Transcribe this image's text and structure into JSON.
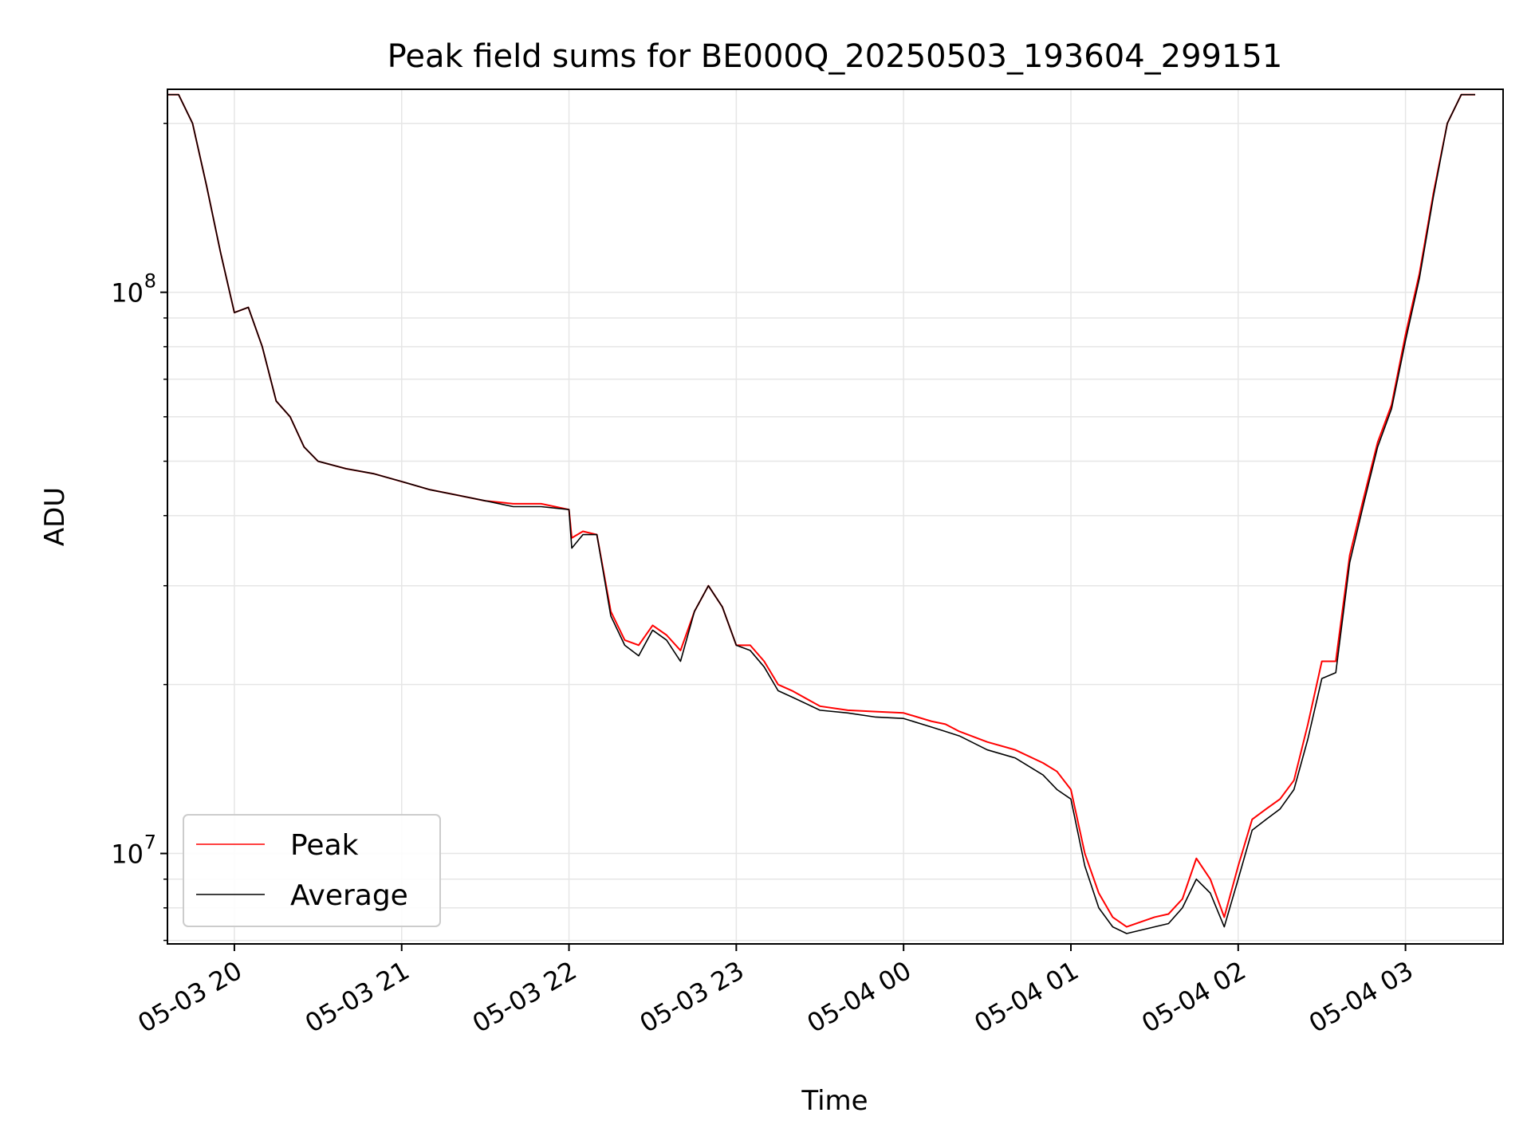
{
  "chart_data": {
    "type": "line",
    "title": "Peak field sums for BE000Q_20250503_193604_299151",
    "xlabel": "Time",
    "ylabel": "ADU",
    "yscale": "log",
    "ylim": [
      6900000,
      230000000
    ],
    "xlim": [
      "2025-05-03 19:36",
      "2025-05-04 03:35"
    ],
    "x_ticks": [
      "05-03 20",
      "05-03 21",
      "05-03 22",
      "05-03 23",
      "05-04 00",
      "05-04 01",
      "05-04 02",
      "05-04 03"
    ],
    "y_ticks": [
      {
        "value": 10000000,
        "base": "10",
        "exp": "7"
      },
      {
        "value": 100000000,
        "base": "10",
        "exp": "8"
      }
    ],
    "grid": true,
    "legend_position": "lower-left",
    "series": [
      {
        "name": "Peak",
        "color": "#ff0000",
        "x": [
          "2025-05-03 19:36",
          "2025-05-03 19:40",
          "2025-05-03 19:45",
          "2025-05-03 19:50",
          "2025-05-03 19:55",
          "2025-05-03 20:00",
          "2025-05-03 20:05",
          "2025-05-03 20:10",
          "2025-05-03 20:15",
          "2025-05-03 20:20",
          "2025-05-03 20:25",
          "2025-05-03 20:30",
          "2025-05-03 20:40",
          "2025-05-03 20:50",
          "2025-05-03 21:00",
          "2025-05-03 21:10",
          "2025-05-03 21:20",
          "2025-05-03 21:30",
          "2025-05-03 21:40",
          "2025-05-03 21:50",
          "2025-05-03 22:00",
          "2025-05-03 22:01",
          "2025-05-03 22:05",
          "2025-05-03 22:10",
          "2025-05-03 22:15",
          "2025-05-03 22:20",
          "2025-05-03 22:25",
          "2025-05-03 22:30",
          "2025-05-03 22:35",
          "2025-05-03 22:40",
          "2025-05-03 22:45",
          "2025-05-03 22:50",
          "2025-05-03 22:55",
          "2025-05-03 23:00",
          "2025-05-03 23:05",
          "2025-05-03 23:10",
          "2025-05-03 23:15",
          "2025-05-03 23:20",
          "2025-05-03 23:30",
          "2025-05-03 23:40",
          "2025-05-03 23:50",
          "2025-05-04 00:00",
          "2025-05-04 00:10",
          "2025-05-04 00:15",
          "2025-05-04 00:20",
          "2025-05-04 00:30",
          "2025-05-04 00:40",
          "2025-05-04 00:50",
          "2025-05-04 00:55",
          "2025-05-04 01:00",
          "2025-05-04 01:05",
          "2025-05-04 01:10",
          "2025-05-04 01:15",
          "2025-05-04 01:20",
          "2025-05-04 01:30",
          "2025-05-04 01:35",
          "2025-05-04 01:40",
          "2025-05-04 01:45",
          "2025-05-04 01:50",
          "2025-05-04 01:55",
          "2025-05-04 02:00",
          "2025-05-04 02:05",
          "2025-05-04 02:10",
          "2025-05-04 02:15",
          "2025-05-04 02:20",
          "2025-05-04 02:25",
          "2025-05-04 02:30",
          "2025-05-04 02:35",
          "2025-05-04 02:40",
          "2025-05-04 02:45",
          "2025-05-04 02:50",
          "2025-05-04 02:55",
          "2025-05-04 03:00",
          "2025-05-04 03:05",
          "2025-05-04 03:10",
          "2025-05-04 03:15",
          "2025-05-04 03:20",
          "2025-05-04 03:25"
        ],
        "values": [
          225000000,
          225000000,
          200000000,
          155000000,
          118000000,
          92000000,
          94000000,
          80000000,
          64000000,
          60000000,
          53000000,
          50000000,
          48500000,
          47500000,
          46000000,
          44500000,
          43500000,
          42500000,
          42000000,
          42000000,
          41000000,
          36500000,
          37500000,
          37000000,
          27000000,
          24000000,
          23500000,
          25500000,
          24500000,
          23000000,
          27000000,
          30000000,
          27500000,
          23500000,
          23500000,
          22000000,
          20000000,
          19500000,
          18300000,
          18000000,
          17900000,
          17800000,
          17200000,
          17000000,
          16500000,
          15800000,
          15300000,
          14500000,
          14000000,
          13000000,
          10000000,
          8500000,
          7700000,
          7400000,
          7700000,
          7800000,
          8300000,
          9800000,
          9000000,
          7700000,
          9500000,
          11500000,
          12000000,
          12500000,
          13500000,
          17000000,
          22000000,
          22000000,
          34000000,
          43000000,
          54000000,
          63000000,
          84000000,
          108000000,
          150000000,
          200000000,
          225000000,
          225000000
        ]
      },
      {
        "name": "Average",
        "color": "#000000",
        "x": [
          "2025-05-03 19:36",
          "2025-05-03 19:40",
          "2025-05-03 19:45",
          "2025-05-03 19:50",
          "2025-05-03 19:55",
          "2025-05-03 20:00",
          "2025-05-03 20:05",
          "2025-05-03 20:10",
          "2025-05-03 20:15",
          "2025-05-03 20:20",
          "2025-05-03 20:25",
          "2025-05-03 20:30",
          "2025-05-03 20:40",
          "2025-05-03 20:50",
          "2025-05-03 21:00",
          "2025-05-03 21:10",
          "2025-05-03 21:20",
          "2025-05-03 21:30",
          "2025-05-03 21:40",
          "2025-05-03 21:50",
          "2025-05-03 22:00",
          "2025-05-03 22:01",
          "2025-05-03 22:05",
          "2025-05-03 22:10",
          "2025-05-03 22:15",
          "2025-05-03 22:20",
          "2025-05-03 22:25",
          "2025-05-03 22:30",
          "2025-05-03 22:35",
          "2025-05-03 22:40",
          "2025-05-03 22:45",
          "2025-05-03 22:50",
          "2025-05-03 22:55",
          "2025-05-03 23:00",
          "2025-05-03 23:05",
          "2025-05-03 23:10",
          "2025-05-03 23:15",
          "2025-05-03 23:20",
          "2025-05-03 23:30",
          "2025-05-03 23:40",
          "2025-05-03 23:50",
          "2025-05-04 00:00",
          "2025-05-04 00:10",
          "2025-05-04 00:15",
          "2025-05-04 00:20",
          "2025-05-04 00:30",
          "2025-05-04 00:40",
          "2025-05-04 00:50",
          "2025-05-04 00:55",
          "2025-05-04 01:00",
          "2025-05-04 01:05",
          "2025-05-04 01:10",
          "2025-05-04 01:15",
          "2025-05-04 01:20",
          "2025-05-04 01:30",
          "2025-05-04 01:35",
          "2025-05-04 01:40",
          "2025-05-04 01:45",
          "2025-05-04 01:50",
          "2025-05-04 01:55",
          "2025-05-04 02:00",
          "2025-05-04 02:05",
          "2025-05-04 02:10",
          "2025-05-04 02:15",
          "2025-05-04 02:20",
          "2025-05-04 02:25",
          "2025-05-04 02:30",
          "2025-05-04 02:35",
          "2025-05-04 02:40",
          "2025-05-04 02:45",
          "2025-05-04 02:50",
          "2025-05-04 02:55",
          "2025-05-04 03:00",
          "2025-05-04 03:05",
          "2025-05-04 03:10",
          "2025-05-04 03:15",
          "2025-05-04 03:20",
          "2025-05-04 03:25"
        ],
        "values": [
          225000000,
          225000000,
          200000000,
          155000000,
          118000000,
          92000000,
          94000000,
          80000000,
          64000000,
          60000000,
          53000000,
          50000000,
          48500000,
          47500000,
          46000000,
          44500000,
          43500000,
          42500000,
          41500000,
          41500000,
          41000000,
          35000000,
          37000000,
          37000000,
          26500000,
          23500000,
          22500000,
          25000000,
          24000000,
          22000000,
          27000000,
          30000000,
          27500000,
          23500000,
          23000000,
          21500000,
          19500000,
          19000000,
          18000000,
          17800000,
          17500000,
          17400000,
          16800000,
          16500000,
          16200000,
          15300000,
          14800000,
          13800000,
          13000000,
          12500000,
          9500000,
          8000000,
          7400000,
          7200000,
          7400000,
          7500000,
          8000000,
          9000000,
          8500000,
          7400000,
          9000000,
          11000000,
          11500000,
          12000000,
          13000000,
          16000000,
          20500000,
          21000000,
          33000000,
          42000000,
          53000000,
          62000000,
          82000000,
          106000000,
          148000000,
          200000000,
          225000000,
          225000000
        ]
      }
    ]
  }
}
